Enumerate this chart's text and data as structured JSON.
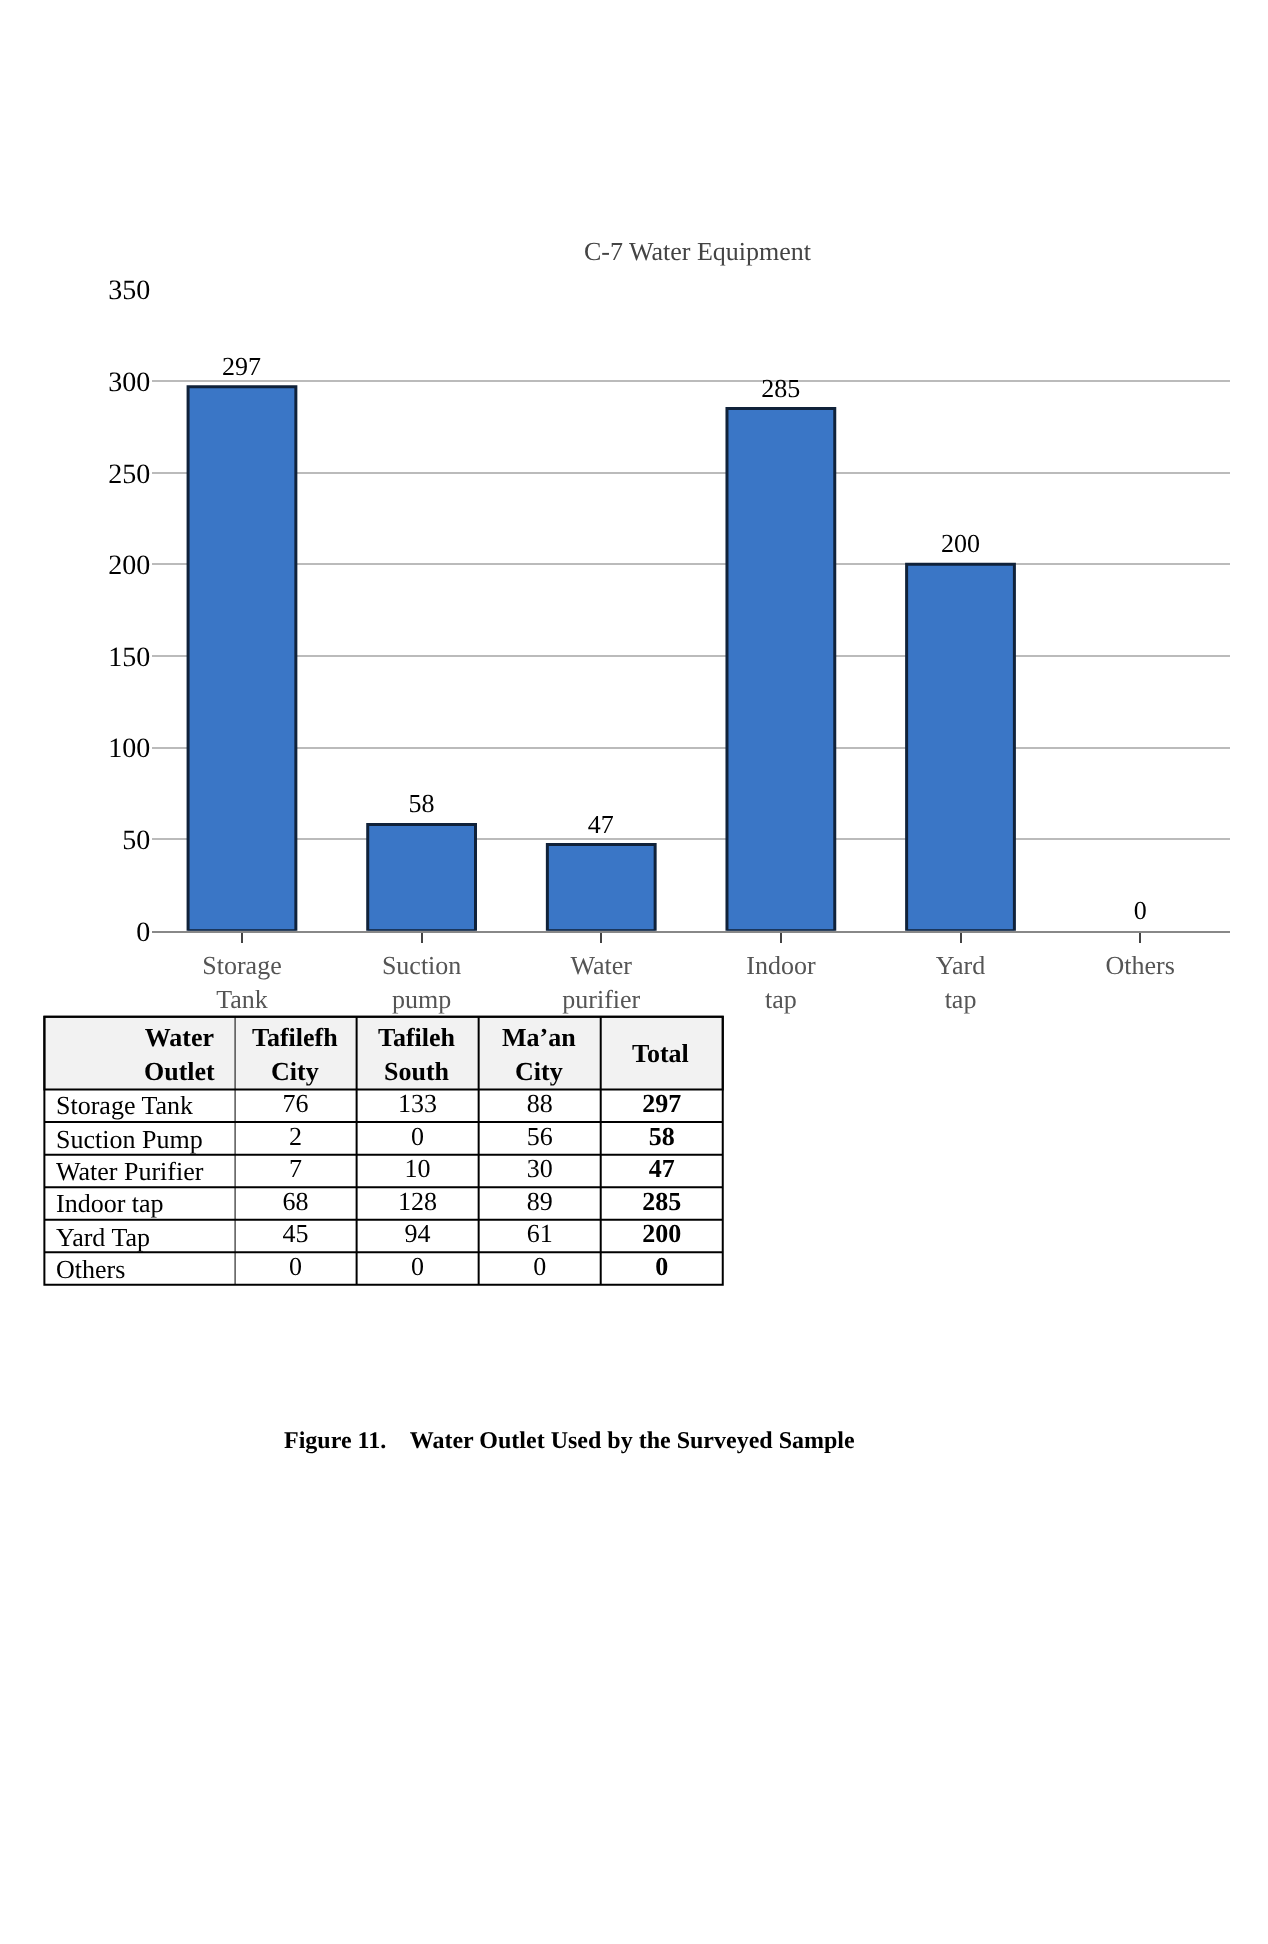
{
  "chart_data": [
    {
      "type": "bar",
      "title": "C-7 Water Equipment",
      "categories": [
        "Storage Tank",
        "Suction pump",
        "Water purifier",
        "Indoor tap",
        "Yard tap",
        "Others"
      ],
      "values": [
        297,
        58,
        47,
        285,
        200,
        0
      ],
      "color": "#3a76c6",
      "ylim": [
        0,
        350
      ],
      "yticks": [
        0,
        50,
        100,
        150,
        200,
        250,
        300,
        350
      ],
      "grid": "y",
      "data_labels": true
    },
    {
      "type": "heatmap",
      "ylabel": "Water Outlet",
      "categories": [
        "Tafilefh City",
        "Tafileh South",
        "Ma’an City",
        "Total"
      ],
      "y_categories": [
        "Storage Tank",
        "Suction Pump",
        "Water Purifier",
        "Indoor tap",
        "Yard Tap",
        "Others"
      ],
      "cells": [
        [
          76,
          133,
          88,
          297
        ],
        [
          2,
          0,
          56,
          58
        ],
        [
          7,
          10,
          30,
          47
        ],
        [
          68,
          128,
          89,
          285
        ],
        [
          45,
          94,
          61,
          200
        ],
        [
          0,
          0,
          0,
          0
        ]
      ],
      "data_labels": true,
      "annotations": [
        "Figure 11.    Water Outlet Used by the Surveyed Sample"
      ]
    }
  ]
}
